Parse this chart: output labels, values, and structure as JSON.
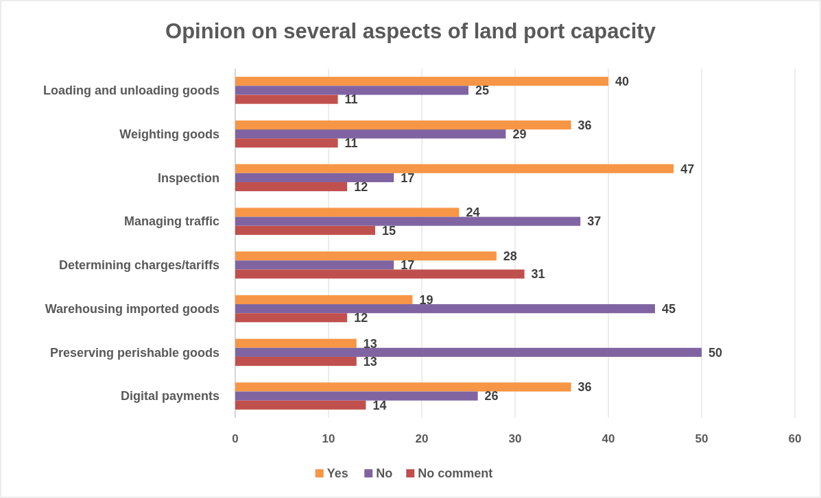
{
  "chart_data": {
    "type": "bar",
    "orientation": "horizontal",
    "title": "Opinion on several aspects of land port capacity",
    "categories": [
      "Loading and unloading goods",
      "Weighting goods",
      "Inspection",
      "Managing traffic",
      "Determining charges/tariffs",
      "Warehousing imported goods",
      "Preserving perishable goods",
      "Digital payments"
    ],
    "series": [
      {
        "name": "Yes",
        "color": "#f79646",
        "values": [
          40,
          36,
          47,
          24,
          28,
          19,
          13,
          36
        ]
      },
      {
        "name": "No",
        "color": "#8064a2",
        "values": [
          25,
          29,
          17,
          37,
          17,
          45,
          50,
          26
        ]
      },
      {
        "name": "No comment",
        "color": "#c0504d",
        "values": [
          11,
          11,
          12,
          15,
          31,
          12,
          13,
          14
        ]
      }
    ],
    "xlim": [
      0,
      60
    ],
    "xticks": [
      0,
      10,
      20,
      30,
      40,
      50,
      60
    ],
    "grid": "x",
    "legend": "bottom",
    "data_labels": true
  }
}
